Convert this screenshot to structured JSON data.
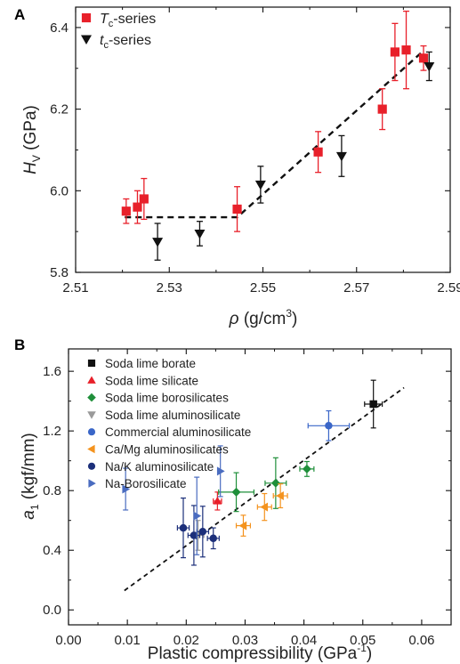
{
  "chart_data": [
    {
      "panel_label": "A",
      "type": "scatter",
      "xlabel": "ρ (g/cm³)",
      "xlabel_parts": [
        "ρ",
        " (g/cm",
        "3",
        ")"
      ],
      "ylabel": "H_V (GPa)",
      "ylabel_parts": [
        "H",
        "V",
        " (GPa)"
      ],
      "xlim": [
        2.51,
        2.59
      ],
      "ylim": [
        5.8,
        6.45
      ],
      "xticks": [
        2.51,
        2.53,
        2.55,
        2.57,
        2.59
      ],
      "xtick_labels": [
        "2.51",
        "2.53",
        "2.55",
        "2.57",
        "2.59"
      ],
      "yticks": [
        5.8,
        6.0,
        6.2,
        6.4
      ],
      "ytick_labels": [
        "5.8",
        "6.0",
        "6.2",
        "6.4"
      ],
      "legend_position": "top-left",
      "series": [
        {
          "name": "Tc-series",
          "name_parts": [
            "T",
            "c",
            "-series"
          ],
          "marker": "square",
          "color": "#e8202a",
          "points": [
            {
              "x": 2.5208,
              "y": 5.95,
              "err": 0.03
            },
            {
              "x": 2.5232,
              "y": 5.96,
              "err": 0.04
            },
            {
              "x": 2.5246,
              "y": 5.98,
              "err": 0.05
            },
            {
              "x": 2.5445,
              "y": 5.955,
              "err": 0.055
            },
            {
              "x": 2.5618,
              "y": 6.095,
              "err": 0.05
            },
            {
              "x": 2.5755,
              "y": 6.2,
              "err": 0.05
            },
            {
              "x": 2.5782,
              "y": 6.34,
              "err": 0.07
            },
            {
              "x": 2.5806,
              "y": 6.345,
              "err": 0.095
            },
            {
              "x": 2.5843,
              "y": 6.325,
              "err": 0.03
            }
          ]
        },
        {
          "name": "tc-series",
          "name_parts": [
            "t",
            "c",
            "-series"
          ],
          "marker": "triangle-down",
          "color": "#111111",
          "points": [
            {
              "x": 2.5275,
              "y": 5.875,
              "err": 0.045
            },
            {
              "x": 2.5365,
              "y": 5.895,
              "err": 0.03
            },
            {
              "x": 2.5495,
              "y": 6.015,
              "err": 0.045
            },
            {
              "x": 2.5668,
              "y": 6.085,
              "err": 0.05
            },
            {
              "x": 2.5855,
              "y": 6.305,
              "err": 0.035
            }
          ]
        }
      ],
      "trend_line": [
        [
          2.5205,
          5.935
        ],
        [
          2.5445,
          5.935
        ],
        [
          2.584,
          6.34
        ]
      ]
    },
    {
      "panel_label": "B",
      "type": "scatter",
      "xlabel": "Plastic compressibility (GPa⁻¹)",
      "xlabel_parts": [
        "Plastic compressibility (GPa",
        "-1",
        ")"
      ],
      "ylabel": "a1 (kgf/mm)",
      "ylabel_parts": [
        "a",
        "1",
        " (kgf/mm)"
      ],
      "xlim": [
        0.0,
        0.065
      ],
      "ylim": [
        -0.1,
        1.75
      ],
      "xticks": [
        0.0,
        0.01,
        0.02,
        0.03,
        0.04,
        0.05,
        0.06
      ],
      "xtick_labels": [
        "0.00",
        "0.01",
        "0.02",
        "0.03",
        "0.04",
        "0.05",
        "0.06"
      ],
      "yticks": [
        0.0,
        0.4,
        0.8,
        1.2,
        1.6
      ],
      "ytick_labels": [
        "0.0",
        "0.4",
        "0.8",
        "1.2",
        "1.6"
      ],
      "legend_position": "top-left",
      "series": [
        {
          "name": "Soda lime borate",
          "marker": "square",
          "color": "#111111",
          "points": [
            {
              "x": 0.0518,
              "y": 1.38,
              "xerr": 0.0015,
              "yerr": 0.16
            }
          ]
        },
        {
          "name": "Soda lime silicate",
          "marker": "triangle-up",
          "color": "#e8202a",
          "points": [
            {
              "x": 0.0253,
              "y": 0.73,
              "xerr": 0.0007,
              "yerr": 0.06
            }
          ]
        },
        {
          "name": "Soda lime borosilicates",
          "marker": "diamond",
          "color": "#1f8f3a",
          "points": [
            {
              "x": 0.0285,
              "y": 0.79,
              "xerr": 0.003,
              "yerr": 0.13
            },
            {
              "x": 0.0352,
              "y": 0.85,
              "xerr": 0.0018,
              "yerr": 0.17
            },
            {
              "x": 0.0405,
              "y": 0.945,
              "xerr": 0.0012,
              "yerr": 0.05
            }
          ]
        },
        {
          "name": "Soda lime aluminosilicate",
          "marker": "triangle-down",
          "color": "#9a9a9a",
          "points": [
            {
              "x": 0.022,
              "y": 0.5,
              "xerr": 0.001,
              "yerr": 0.1
            }
          ]
        },
        {
          "name": "Commercial aluminosilicate",
          "marker": "circle",
          "color": "#3a66c8",
          "points": [
            {
              "x": 0.0442,
              "y": 1.235,
              "xerr": 0.0035,
              "yerr": 0.1
            }
          ]
        },
        {
          "name": "Ca/Mg aluminosilicates",
          "marker": "triangle-left",
          "color": "#f4931e",
          "points": [
            {
              "x": 0.0297,
              "y": 0.565,
              "xerr": 0.0012,
              "yerr": 0.07
            },
            {
              "x": 0.0333,
              "y": 0.69,
              "xerr": 0.0012,
              "yerr": 0.09
            },
            {
              "x": 0.036,
              "y": 0.765,
              "xerr": 0.0012,
              "yerr": 0.08
            }
          ]
        },
        {
          "name": "Na/K aluminosilicate",
          "marker": "circle",
          "color": "#1c2f7a",
          "points": [
            {
              "x": 0.0195,
              "y": 0.55,
              "xerr": 0.001,
              "yerr": 0.2
            },
            {
              "x": 0.0213,
              "y": 0.5,
              "xerr": 0.001,
              "yerr": 0.2
            },
            {
              "x": 0.0228,
              "y": 0.525,
              "xerr": 0.001,
              "yerr": 0.17
            },
            {
              "x": 0.0246,
              "y": 0.48,
              "xerr": 0.001,
              "yerr": 0.07
            }
          ]
        },
        {
          "name": "Na-Borosilicate",
          "marker": "triangle-right",
          "color": "#4a6cc0",
          "points": [
            {
              "x": 0.0097,
              "y": 0.81,
              "xerr": 0.0,
              "yerr": 0.14
            },
            {
              "x": 0.0218,
              "y": 0.63,
              "xerr": 0.0,
              "yerr": 0.26
            },
            {
              "x": 0.0258,
              "y": 0.93,
              "xerr": 0.0,
              "yerr": 0.17
            }
          ]
        }
      ],
      "trend_line": [
        [
          0.0095,
          0.13
        ],
        [
          0.057,
          1.49
        ]
      ]
    }
  ]
}
